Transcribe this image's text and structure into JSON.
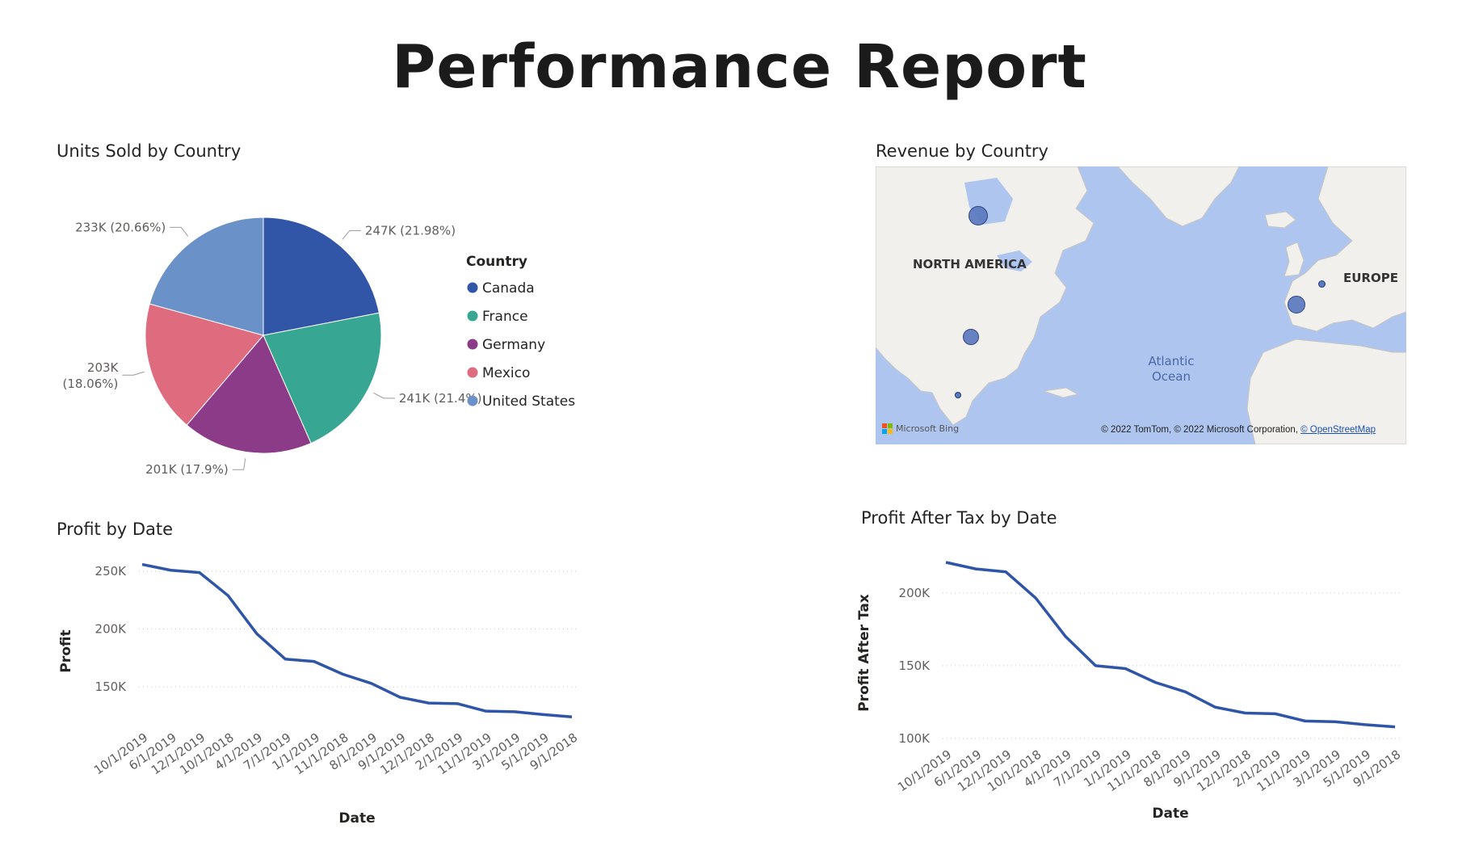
{
  "report": {
    "title": "Performance Report"
  },
  "colors": {
    "canada": "#3156a8",
    "france": "#37a794",
    "germany": "#8b3b87",
    "mexico": "#de6b7e",
    "united_states": "#6b91c9",
    "line": "#2f55a8",
    "map_water": "#aec6ef",
    "map_land": "#f2f0ec",
    "bubble": "#5b79c0"
  },
  "pie_visual": {
    "title": "Units Sold by Country",
    "legend_title": "Country"
  },
  "map_visual": {
    "title": "Revenue by Country",
    "labels": {
      "north_america": "NORTH AMERICA",
      "europe": "EUROPE",
      "ocean_line1": "Atlantic",
      "ocean_line2": "Ocean"
    },
    "logo_text": "Microsoft Bing",
    "attribution_prefix": "© 2022 TomTom, © 2022 Microsoft Corporation, ",
    "attribution_link": "© OpenStreetMap",
    "bubbles": [
      {
        "country": "Canada",
        "size": "large"
      },
      {
        "country": "United States",
        "size": "medium"
      },
      {
        "country": "Mexico",
        "size": "small"
      },
      {
        "country": "France",
        "size": "large"
      },
      {
        "country": "Germany",
        "size": "small"
      }
    ]
  },
  "chart_data": [
    {
      "type": "pie",
      "title": "Units Sold by Country",
      "legend_title": "Country",
      "legend_placement": "right",
      "categories": [
        "Canada",
        "France",
        "Germany",
        "Mexico",
        "United States"
      ],
      "values": [
        247,
        241,
        201,
        203,
        233
      ],
      "value_unit": "K",
      "labels": [
        "247K (21.98%)",
        "241K (21.4%)",
        "201K (17.9%)",
        "203K (18.06%)",
        "233K (20.66%)"
      ],
      "percents": [
        21.98,
        21.4,
        17.9,
        18.06,
        20.66
      ]
    },
    {
      "type": "line",
      "title": "Profit by Date",
      "xlabel": "Date",
      "ylabel": "Profit",
      "x": [
        "10/1/2019",
        "6/1/2019",
        "12/1/2019",
        "10/1/2018",
        "4/1/2019",
        "7/1/2019",
        "1/1/2019",
        "11/1/2018",
        "8/1/2019",
        "9/1/2019",
        "12/1/2018",
        "2/1/2019",
        "11/1/2019",
        "3/1/2019",
        "5/1/2019",
        "9/1/2018"
      ],
      "y": [
        256000,
        251000,
        249000,
        229000,
        196000,
        174000,
        172000,
        161000,
        153000,
        141000,
        136000,
        135500,
        129000,
        128500,
        126000,
        124000
      ],
      "yticks": [
        150000,
        200000,
        250000
      ],
      "ytick_labels": [
        "150K",
        "200K",
        "250K"
      ],
      "ylim": [
        120000,
        262000
      ],
      "grid": true
    },
    {
      "type": "line",
      "title": "Profit After Tax by Date",
      "xlabel": "Date",
      "ylabel": "Profit After Tax",
      "x": [
        "10/1/2019",
        "6/1/2019",
        "12/1/2019",
        "10/1/2018",
        "4/1/2019",
        "7/1/2019",
        "1/1/2019",
        "11/1/2018",
        "8/1/2019",
        "9/1/2019",
        "12/1/2018",
        "2/1/2019",
        "11/1/2019",
        "3/1/2019",
        "5/1/2019",
        "9/1/2018"
      ],
      "y": [
        221000,
        216500,
        214500,
        196500,
        170000,
        150000,
        148000,
        138500,
        132000,
        121500,
        117500,
        117000,
        112000,
        111500,
        109500,
        108000
      ],
      "yticks": [
        100000,
        150000,
        200000
      ],
      "ytick_labels": [
        "100K",
        "150K",
        "200K"
      ],
      "ylim": [
        100000,
        226000
      ],
      "grid": true
    }
  ]
}
